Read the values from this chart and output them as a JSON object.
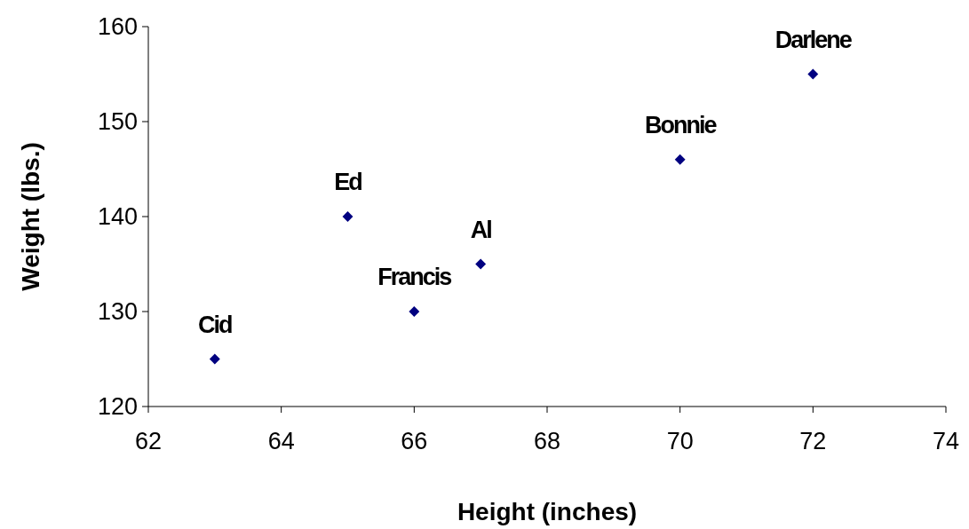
{
  "chart_data": {
    "type": "scatter",
    "xlabel": "Height (inches)",
    "ylabel": "Weight (lbs.)",
    "x": [
      63,
      65,
      66,
      67,
      70,
      72
    ],
    "series": [
      {
        "color": "#000080",
        "values": [
          125,
          140,
          130,
          135,
          146,
          155
        ]
      }
    ],
    "xlim": [
      62,
      74
    ],
    "xticks": [
      62,
      64,
      66,
      68,
      70,
      72,
      74
    ],
    "ylim": [
      120,
      160
    ],
    "yticks": [
      120,
      130,
      140,
      150,
      160
    ],
    "grid": false,
    "marker": "diamond",
    "annotations": [
      {
        "text": "Cid",
        "x": 63,
        "y": 125
      },
      {
        "text": "Ed",
        "x": 65,
        "y": 140
      },
      {
        "text": "Francis",
        "x": 66,
        "y": 130
      },
      {
        "text": "Al",
        "x": 67,
        "y": 135
      },
      {
        "text": "Bonnie",
        "x": 70,
        "y": 146
      },
      {
        "text": "Darlene",
        "x": 72,
        "y": 155
      }
    ]
  }
}
